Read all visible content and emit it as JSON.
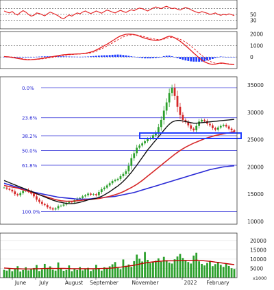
{
  "colors": {
    "price_up": "#2ca02c",
    "price_down": "#d62728",
    "rsi": "#e31a1c",
    "macd_main": "#e31a1c",
    "macd_signal": "#e31a1c",
    "macd_hist": "#1f3cff",
    "ma_black": "#111111",
    "ma_red": "#d62728",
    "ma_blue": "#2b2bd6",
    "fib_line": "#2b2bd6",
    "box": "#1f3cff",
    "volume_bar": "#2ca02c",
    "volume_ma": "#c00000"
  },
  "chart_data": [
    {
      "type": "line",
      "title": "",
      "ylabel": "",
      "ylim": [
        0,
        100
      ],
      "yticks": [
        50,
        30
      ],
      "hlines": [
        70,
        50,
        30
      ],
      "series": [
        {
          "name": "",
          "values": [
            62,
            58,
            55,
            60,
            52,
            48,
            57,
            63,
            58,
            50,
            44,
            47,
            55,
            53,
            49,
            45,
            52,
            58,
            54,
            50,
            45,
            38,
            35,
            42,
            48,
            44,
            50,
            55,
            52,
            58,
            62,
            57,
            53,
            57,
            62,
            58,
            54,
            60,
            65,
            62,
            58,
            55,
            60,
            64,
            60,
            57,
            62,
            66,
            63,
            68,
            72,
            70,
            66,
            62,
            67,
            72,
            76,
            73,
            70,
            75,
            78,
            74,
            70,
            72,
            68,
            65,
            70,
            74,
            71,
            66,
            62,
            58,
            55,
            60,
            57,
            54,
            50,
            52,
            55,
            50,
            47,
            50,
            48,
            52,
            49,
            46
          ]
        }
      ]
    },
    {
      "type": "line",
      "title": "",
      "ylabel": "",
      "ylim": [
        -1000,
        2200
      ],
      "yticks": [
        2000,
        1000,
        0
      ],
      "series": [
        {
          "name": "",
          "values": [
            40,
            20,
            0,
            -40,
            -80,
            -120,
            -160,
            -200,
            -230,
            -240,
            -230,
            -210,
            -190,
            -160,
            -120,
            -80,
            -40,
            0,
            40,
            80,
            120,
            160,
            190,
            210,
            230,
            240,
            250,
            260,
            270,
            290,
            320,
            360,
            420,
            500,
            600,
            720,
            850,
            980,
            1100,
            1250,
            1400,
            1550,
            1700,
            1820,
            1900,
            1960,
            1980,
            1970,
            1940,
            1880,
            1800,
            1700,
            1620,
            1560,
            1500,
            1460,
            1440,
            1450,
            1500,
            1620,
            1720,
            1800,
            1760,
            1650,
            1520,
            1360,
            1180,
            980,
            780,
            560,
            340,
            140,
            -80,
            -260,
            -420,
            -520,
            -600,
            -640,
            -620,
            -560,
            -520,
            -540,
            -580,
            -620,
            -640,
            -660
          ]
        },
        {
          "name": "",
          "values": [
            30,
            25,
            15,
            -10,
            -40,
            -80,
            -120,
            -160,
            -190,
            -210,
            -220,
            -215,
            -205,
            -190,
            -165,
            -135,
            -100,
            -60,
            -20,
            20,
            60,
            100,
            135,
            165,
            190,
            210,
            225,
            240,
            255,
            270,
            290,
            320,
            360,
            420,
            500,
            600,
            710,
            830,
            950,
            1080,
            1210,
            1350,
            1490,
            1620,
            1730,
            1820,
            1880,
            1910,
            1915,
            1900,
            1860,
            1800,
            1740,
            1680,
            1620,
            1570,
            1530,
            1510,
            1510,
            1550,
            1610,
            1680,
            1700,
            1680,
            1620,
            1530,
            1420,
            1280,
            1120,
            940,
            740,
            540,
            330,
            130,
            -60,
            -220,
            -360,
            -470,
            -540,
            -560,
            -560,
            -560,
            -570,
            -590,
            -610,
            -630
          ]
        },
        {
          "name": "",
          "values": [
            10,
            -5,
            -15,
            -30,
            -40,
            -40,
            -40,
            -40,
            -40,
            -30,
            -10,
            5,
            15,
            30,
            45,
            55,
            60,
            60,
            60,
            60,
            60,
            60,
            55,
            45,
            40,
            30,
            25,
            20,
            15,
            20,
            30,
            40,
            60,
            80,
            100,
            120,
            140,
            150,
            150,
            170,
            190,
            200,
            210,
            200,
            170,
            140,
            100,
            60,
            25,
            -20,
            -60,
            -100,
            -120,
            -120,
            -120,
            -110,
            -90,
            -60,
            -10,
            70,
            110,
            120,
            60,
            -30,
            -100,
            -170,
            -240,
            -300,
            -340,
            -380,
            -400,
            -400,
            -410,
            -390,
            -360,
            -300,
            -240,
            -170,
            -80,
            0,
            40,
            20,
            -10,
            -30,
            -30,
            -30
          ]
        }
      ]
    },
    {
      "type": "candlestick",
      "title": "",
      "ylabel": "",
      "ylim": [
        9500,
        36500
      ],
      "yticks": [
        35000,
        30000,
        25000,
        20000,
        15000,
        10000
      ],
      "x_labels": [
        "June",
        "July",
        "August",
        "September",
        "November",
        "2022",
        "February"
      ],
      "fibonacci": [
        {
          "label": "0.0%",
          "value": 34500
        },
        {
          "label": "23.6%",
          "value": 29000
        },
        {
          "label": "38.2%",
          "value": 25700
        },
        {
          "label": "50.0%",
          "value": 23000
        },
        {
          "label": "61.8%",
          "value": 20300
        },
        {
          "label": "100.0%",
          "value": 11800
        }
      ],
      "highlight_zone": {
        "low": 25200,
        "high": 26200
      },
      "series": [
        {
          "name": "",
          "kind": "candles",
          "close": [
            16200,
            16000,
            15800,
            15500,
            15000,
            14800,
            15200,
            15600,
            15800,
            15500,
            15100,
            14600,
            14000,
            13600,
            13200,
            13000,
            12600,
            12400,
            12200,
            12400,
            12800,
            12900,
            13100,
            13400,
            13600,
            13500,
            13900,
            14200,
            14300,
            14600,
            14800,
            15100,
            14900,
            15000,
            14800,
            15400,
            15900,
            16200,
            16600,
            17000,
            17400,
            17600,
            17800,
            18300,
            18700,
            19200,
            20200,
            21600,
            22500,
            23500,
            23900,
            24300,
            24700,
            25100,
            25300,
            25800,
            26300,
            27300,
            28600,
            30300,
            31800,
            33500,
            34500,
            33000,
            31000,
            29500,
            28600,
            28200,
            27600,
            27000,
            26700,
            27500,
            28300,
            28600,
            28400,
            27900,
            27600,
            27100,
            26800,
            27200,
            27500,
            27700,
            27400,
            27000,
            26700,
            26400
          ]
        },
        {
          "name": "",
          "kind": "ma",
          "values": [
            17500,
            17300,
            17100,
            16900,
            16700,
            16500,
            16300,
            16100,
            15900,
            15700,
            15500,
            15300,
            15100,
            14900,
            14700,
            14500,
            14300,
            14100,
            13900,
            13750,
            13600,
            13500,
            13400,
            13300,
            13250,
            13250,
            13300,
            13400,
            13500,
            13650,
            13800,
            13950,
            14050,
            14150,
            14250,
            14400,
            14600,
            14850,
            15150,
            15450,
            15800,
            16150,
            16500,
            16900,
            17350,
            17850,
            18400,
            19000,
            19650,
            20300,
            21000,
            21700,
            22400,
            23100,
            23700,
            24300,
            24900,
            25500,
            26100,
            26700,
            27300,
            27800,
            28200,
            28400,
            28500,
            28500,
            28400,
            28300,
            28200,
            28100,
            28000,
            28000,
            28050,
            28100,
            28150,
            28200,
            28250,
            28300,
            28350,
            28400,
            28450,
            28500,
            28550,
            28600,
            28650,
            28700
          ]
        },
        {
          "name": "",
          "kind": "ma",
          "values": [
            16600,
            16500,
            16400,
            16300,
            16200,
            16100,
            15950,
            15800,
            15650,
            15500,
            15350,
            15200,
            15050,
            14900,
            14750,
            14600,
            14450,
            14300,
            14150,
            14000,
            13900,
            13800,
            13750,
            13700,
            13700,
            13700,
            13750,
            13800,
            13850,
            13900,
            13950,
            14000,
            14050,
            14100,
            14150,
            14200,
            14300,
            14400,
            14500,
            14600,
            14750,
            14900,
            15050,
            15250,
            15450,
            15700,
            15950,
            16200,
            16500,
            16800,
            17150,
            17500,
            17900,
            18300,
            18700,
            19100,
            19500,
            19900,
            20300,
            20700,
            21100,
            21500,
            21900,
            22300,
            22650,
            23000,
            23300,
            23600,
            23850,
            24100,
            24350,
            24550,
            24750,
            24950,
            25150,
            25300,
            25450,
            25600,
            25750,
            25850,
            25950,
            26050,
            26150,
            26250,
            26350,
            26450
          ]
        },
        {
          "name": "",
          "kind": "ma",
          "values": [
            17000,
            16850,
            16700,
            16550,
            16400,
            16250,
            16100,
            15950,
            15800,
            15650,
            15500,
            15350,
            15250,
            15150,
            15050,
            14950,
            14850,
            14750,
            14650,
            14550,
            14450,
            14400,
            14350,
            14300,
            14250,
            14200,
            14150,
            14100,
            14100,
            14100,
            14100,
            14100,
            14150,
            14200,
            14250,
            14300,
            14350,
            14400,
            14450,
            14500,
            14550,
            14600,
            14700,
            14800,
            14900,
            15000,
            15100,
            15200,
            15300,
            15450,
            15600,
            15750,
            15900,
            16050,
            16200,
            16350,
            16500,
            16650,
            16800,
            16950,
            17100,
            17250,
            17400,
            17550,
            17700,
            17850,
            18000,
            18150,
            18300,
            18450,
            18600,
            18750,
            18900,
            19050,
            19200,
            19350,
            19500,
            19600,
            19700,
            19800,
            19900,
            20000,
            20050,
            20100,
            20150,
            20200
          ]
        }
      ]
    },
    {
      "type": "bar",
      "title": "",
      "ylabel": "",
      "ylim": [
        0,
        24000
      ],
      "yticks": [
        20000,
        15000,
        10000,
        5000
      ],
      "unit_label": "x1000",
      "series": [
        {
          "name": "",
          "kind": "volume",
          "values": [
            4200,
            3800,
            5100,
            3500,
            4800,
            6200,
            3300,
            4100,
            5600,
            3900,
            4400,
            5200,
            6800,
            3600,
            4500,
            7400,
            5200,
            6100,
            4300,
            3800,
            8200,
            4900,
            3700,
            4200,
            6600,
            3500,
            4800,
            4100,
            5700,
            3900,
            4600,
            5300,
            3600,
            4400,
            6900,
            4700,
            3800,
            5600,
            4900,
            6100,
            7200,
            8400,
            5300,
            4600,
            9800,
            6400,
            7100,
            5800,
            8900,
            12400,
            10200,
            8700,
            13800,
            9600,
            7800,
            8300,
            9100,
            10400,
            8600,
            11200,
            9400,
            8100,
            7600,
            9900,
            11400,
            12800,
            10600,
            9200,
            8400,
            7600,
            11900,
            13400,
            8800,
            7400,
            6600,
            7900,
            9100,
            6200,
            7300,
            8500,
            6900,
            5800,
            7400,
            6300,
            5100,
            4700
          ]
        },
        {
          "name": "",
          "kind": "ma",
          "values": [
            5200,
            5100,
            5000,
            4900,
            4850,
            4800,
            4750,
            4700,
            4700,
            4700,
            4700,
            4750,
            4800,
            4850,
            4900,
            4950,
            5000,
            5050,
            5000,
            4950,
            4950,
            5000,
            5000,
            4950,
            4900,
            4850,
            4850,
            4800,
            4800,
            4800,
            4800,
            4800,
            4800,
            4800,
            4850,
            4900,
            4950,
            5000,
            5050,
            5100,
            5200,
            5350,
            5500,
            5650,
            5850,
            6050,
            6250,
            6450,
            6700,
            7000,
            7300,
            7600,
            7900,
            8100,
            8300,
            8500,
            8650,
            8800,
            8900,
            9000,
            9050,
            9100,
            9100,
            9100,
            9150,
            9200,
            9250,
            9300,
            9300,
            9300,
            9350,
            9400,
            9350,
            9250,
            9100,
            8950,
            8800,
            8600,
            8400,
            8200,
            8000,
            7800,
            7600,
            7400,
            7200,
            7000
          ]
        }
      ]
    }
  ]
}
